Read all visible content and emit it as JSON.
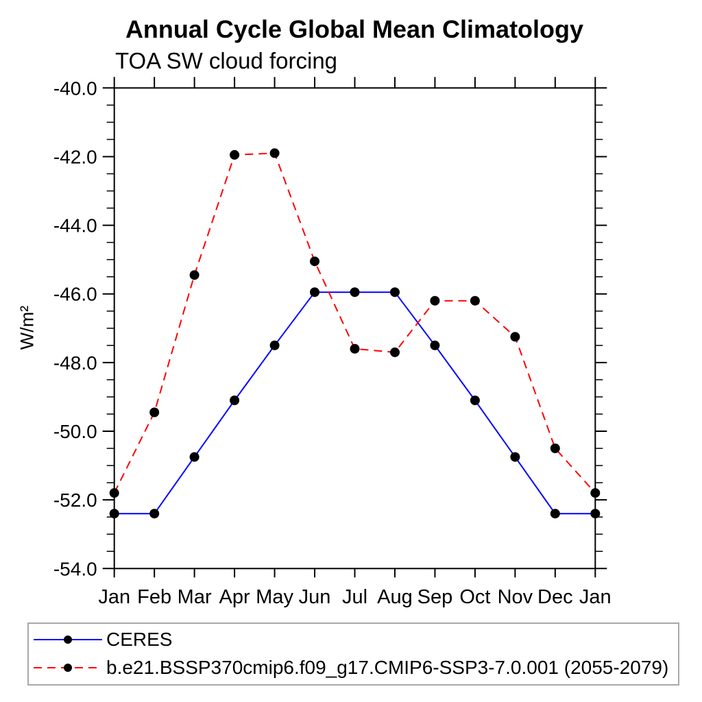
{
  "chart_data": {
    "type": "line",
    "title": "Annual Cycle Global Mean Climatology",
    "subtitle": "TOA SW cloud forcing",
    "ylabel": "W/m²",
    "x_labels": [
      "Jan",
      "Feb",
      "Mar",
      "Apr",
      "May",
      "Jun",
      "Jul",
      "Aug",
      "Sep",
      "Oct",
      "Nov",
      "Dec",
      "Jan"
    ],
    "ylim": [
      -54.0,
      -40.0
    ],
    "y_tick_labels": [
      "-40.0",
      "-42.0",
      "-44.0",
      "-46.0",
      "-48.0",
      "-50.0",
      "-52.0",
      "-54.0"
    ],
    "y_minor_step": 0.5,
    "grid": false,
    "legend_position": "bottom-left",
    "legend_border_color": "#a8a8a8",
    "marker_color": "#000000",
    "series": [
      {
        "name": "CERES",
        "color": "#0000ff",
        "style": "solid",
        "marker": "circle",
        "marker_color": "#000000",
        "values": [
          -52.4,
          -52.4,
          -50.75,
          -49.1,
          -47.5,
          -45.95,
          -45.95,
          -45.95,
          -47.5,
          -49.1,
          -50.75,
          -52.4,
          -52.4
        ]
      },
      {
        "name": "b.e21.BSSP370cmip6.f09_g17.CMIP6-SSP3-7.0.001 (2055-2079)",
        "color": "#ff0000",
        "style": "dashed",
        "marker": "circle",
        "marker_color": "#000000",
        "values": [
          -51.8,
          -49.45,
          -45.45,
          -41.95,
          -41.9,
          -45.05,
          -47.6,
          -47.7,
          -46.2,
          -46.2,
          -47.25,
          -50.5,
          -51.8
        ]
      }
    ]
  }
}
